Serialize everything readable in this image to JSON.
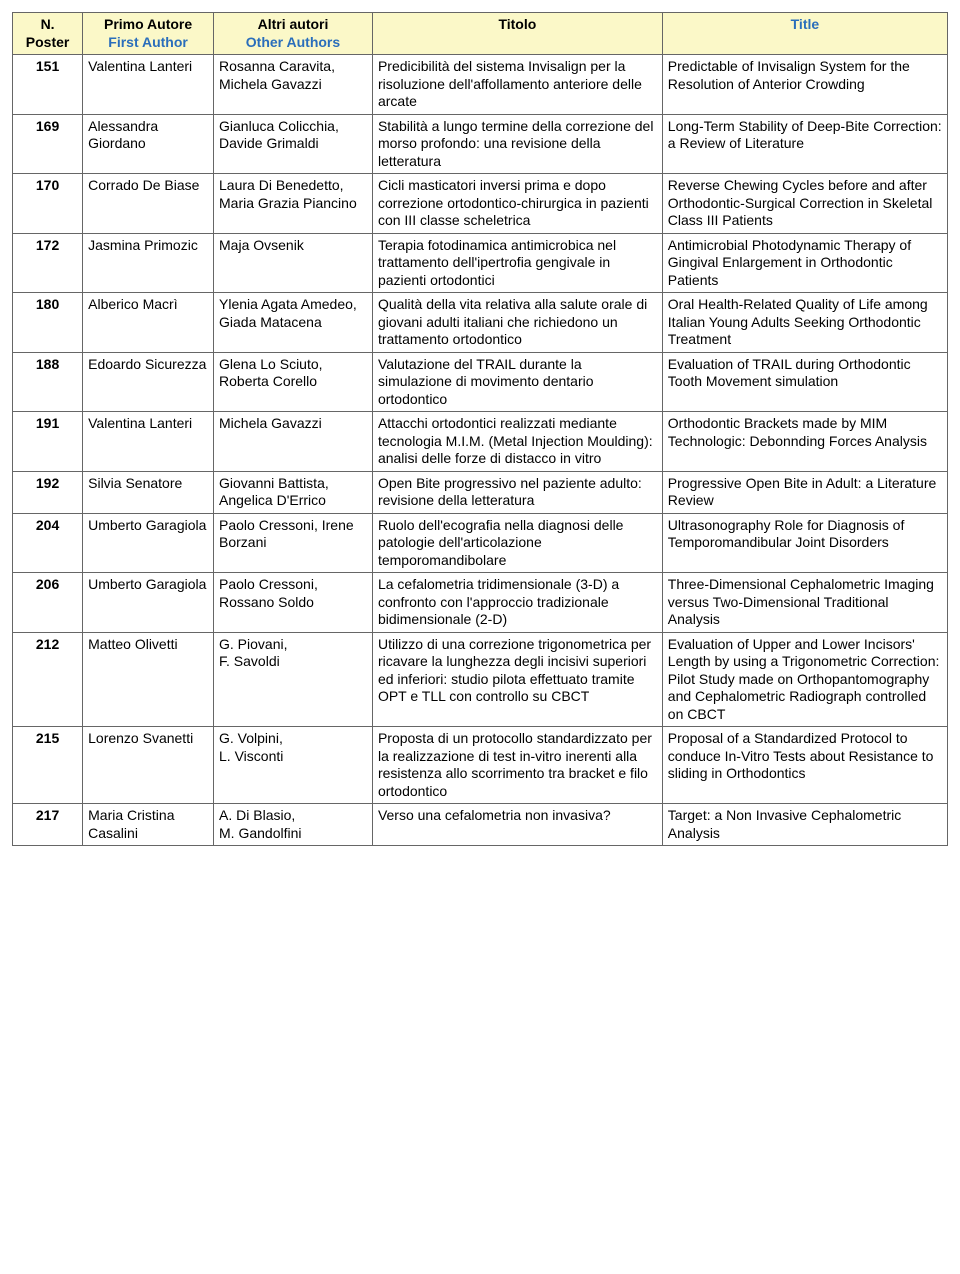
{
  "headers": {
    "poster_it": "N. Poster",
    "first_author_it": "Primo Autore",
    "first_author_en": "First Author",
    "other_authors_it": "Altri autori",
    "other_authors_en": "Other Authors",
    "title_it": "Titolo",
    "title_en": "Title"
  },
  "rows": [
    {
      "n": "151",
      "first": "Valentina Lanteri",
      "others": "Rosanna Caravita, Michela Gavazzi",
      "it": "Predicibilità del sistema Invisalign per la risoluzione dell'affollamento anteriore delle arcate",
      "en": "Predictable of Invisalign System for the Resolution of Anterior Crowding"
    },
    {
      "n": "169",
      "first": "Alessandra Giordano",
      "others": "Gianluca Colicchia, Davide Grimaldi",
      "it": "Stabilità a lungo termine della correzione del morso profondo: una revisione della letteratura",
      "en": "Long-Term Stability of Deep-Bite Correction: a Review of Literature"
    },
    {
      "n": "170",
      "first": "Corrado De Biase",
      "others": "Laura Di Benedetto, Maria Grazia Piancino",
      "it": "Cicli masticatori inversi prima e dopo correzione ortodontico-chirurgica in pazienti con III classe scheletrica",
      "en": "Reverse Chewing Cycles before and after Orthodontic-Surgical Correction in Skeletal Class III Patients"
    },
    {
      "n": "172",
      "first": "Jasmina Primozic",
      "others": "Maja Ovsenik",
      "it": "Terapia fotodinamica antimicrobica nel trattamento dell'ipertrofia gengivale in pazienti ortodontici",
      "en": "Antimicrobial Photodynamic Therapy of Gingival Enlargement in Orthodontic Patients"
    },
    {
      "n": "180",
      "first": "Alberico Macrì",
      "others": "Ylenia Agata Amedeo, Giada Matacena",
      "it": "Qualità della vita relativa alla salute orale di giovani adulti italiani che richiedono un trattamento ortodontico",
      "en": "Oral Health-Related Quality of Life among Italian Young Adults Seeking Orthodontic Treatment"
    },
    {
      "n": "188",
      "first": "Edoardo Sicurezza",
      "others": "Glena Lo Sciuto, Roberta Corello",
      "it": "Valutazione del TRAIL durante la simulazione di movimento dentario ortodontico",
      "en": "Evaluation of TRAIL during Orthodontic Tooth Movement simulation"
    },
    {
      "n": "191",
      "first": "Valentina Lanteri",
      "others": "Michela Gavazzi",
      "it": "Attacchi ortodontici realizzati mediante tecnologia M.I.M. (Metal Injection Moulding): analisi delle forze di distacco in vitro",
      "en": "Orthodontic Brackets made by MIM Technologic: Debonnding Forces Analysis"
    },
    {
      "n": "192",
      "first": "Silvia Senatore",
      "others": "Giovanni Battista, Angelica D'Errico",
      "it": "Open Bite progressivo nel paziente adulto: revisione della letteratura",
      "en": "Progressive Open Bite in Adult: a Literature Review"
    },
    {
      "n": "204",
      "first": "Umberto Garagiola",
      "others": "Paolo Cressoni, Irene Borzani",
      "it": "Ruolo dell'ecografia nella diagnosi delle patologie dell'articolazione temporomandibolare",
      "en": "Ultrasonography Role for Diagnosis of Temporomandibular Joint Disorders"
    },
    {
      "n": "206",
      "first": "Umberto Garagiola",
      "others": "Paolo Cressoni, Rossano Soldo",
      "it": "La cefalometria tridimensionale (3-D) a confronto con l'approccio tradizionale bidimensionale (2-D)",
      "en": "Three-Dimensional Cephalometric Imaging versus Two-Dimensional Traditional Analysis"
    },
    {
      "n": "212",
      "first": "Matteo Olivetti",
      "others": "G. Piovani,\nF. Savoldi",
      "it": "Utilizzo di una correzione trigonometrica per ricavare la lunghezza degli incisivi superiori ed inferiori: studio pilota effettuato tramite OPT e TLL con controllo su CBCT",
      "en": "Evaluation of Upper and Lower Incisors' Length by using a Trigonometric Correction: Pilot Study made on Orthopantomography and Cephalometric Radiograph controlled on CBCT"
    },
    {
      "n": "215",
      "first": "Lorenzo Svanetti",
      "others": "G. Volpini,\nL. Visconti",
      "it": "Proposta di un protocollo standardizzato per la realizzazione di test in-vitro inerenti alla resistenza allo scorrimento tra bracket e filo ortodontico",
      "en": "Proposal of a Standardized Protocol to conduce In-Vitro Tests about Resistance to sliding in Orthodontics"
    },
    {
      "n": "217",
      "first": "Maria Cristina Casalini",
      "others": "A. Di Blasio,\nM. Gandolfini",
      "it": "Verso una cefalometria non invasiva?",
      "en": "Target: a Non Invasive Cephalometric Analysis"
    }
  ]
}
